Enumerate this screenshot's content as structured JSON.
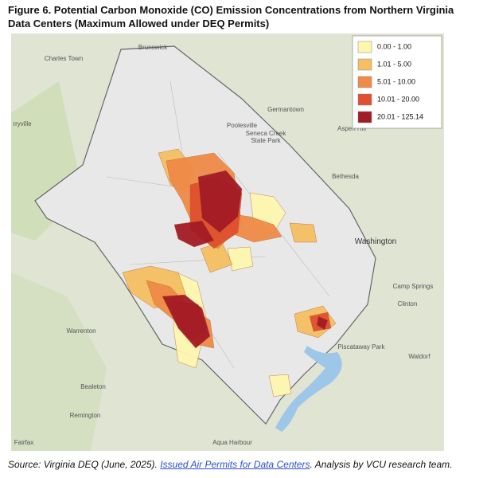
{
  "title_lines": [
    "Figure 6. Potential Carbon Monoxide (CO) Emission Concentrations from Northern Virginia",
    "Data Centers (Maximum Allowed under DEQ Permits)"
  ],
  "legend": [
    {
      "label": "0.00 - 1.00",
      "color": "#fff6b0"
    },
    {
      "label": "1.01 - 5.00",
      "color": "#f5bf62"
    },
    {
      "label": "5.01 - 10.00",
      "color": "#ef8b47"
    },
    {
      "label": "10.01 - 20.00",
      "color": "#e0502e"
    },
    {
      "label": "20.01 - 125.14",
      "color": "#a31b25"
    }
  ],
  "places": [
    "Charles Town",
    "Brunswick",
    "Germantown",
    "Poolesville",
    "Seneca Creek",
    "State Park",
    "Aspen Hill",
    "Bethesda",
    "Washington",
    "Camp Springs",
    "Clinton",
    "Waldorf",
    "Warrenton",
    "Bealeton",
    "Remington",
    "Fairfax",
    "Aqua Harbour",
    "Piscataway Park",
    "rryville"
  ],
  "source": {
    "prefix": "Source: Virginia DEQ (June, 2025). ",
    "link": "Issued Air Permits for Data Centers",
    "suffix": ". Analysis by VCU research team."
  }
}
